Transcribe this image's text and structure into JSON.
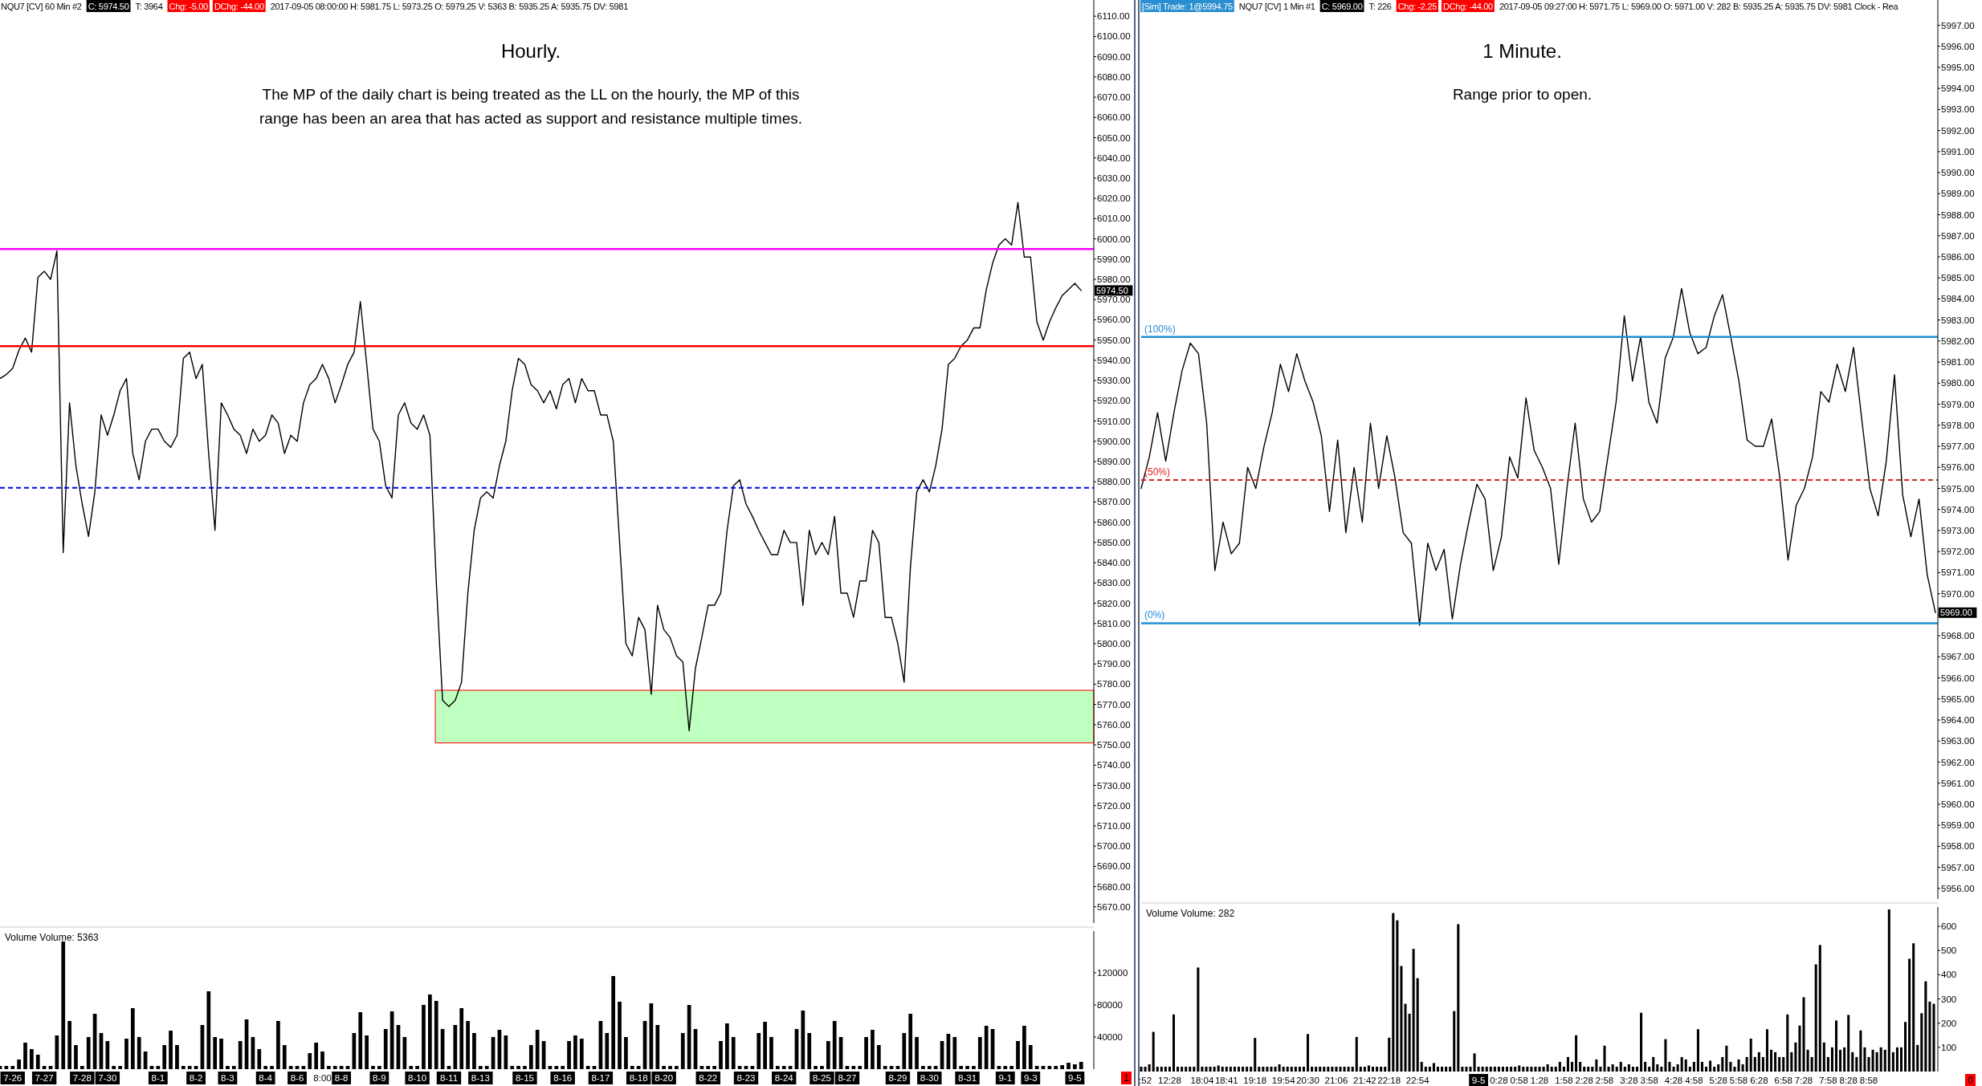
{
  "chart_data": [
    {
      "type": "line",
      "title": "Hourly.",
      "subtitle": "The MP of the daily chart is being treated as the LL on the hourly, the MP of this range has been an area that has acted as support and resistance multiple times.",
      "annotations": [
        "NQU7 [CV]  60 Min  #2",
        "C: 5974.50",
        "T: 3964",
        "Chg: -5.00",
        "DChg: -44.00",
        "2017-09-05 08:00:00 H: 5981.75 L: 5973.25 O: 5979.25 V: 5363 B: 5935.25 A: 5935.75 DV: 5981",
        "5974.50"
      ],
      "categories": [
        null,
        null,
        null,
        null,
        null,
        null,
        null,
        null,
        null,
        null,
        null,
        null,
        null,
        null,
        null,
        null,
        null,
        null,
        null,
        null,
        null,
        null,
        null,
        null,
        null,
        null,
        null,
        null,
        null,
        null,
        null,
        null,
        null,
        null,
        null,
        null,
        null,
        null,
        null,
        null,
        null,
        null,
        null,
        null,
        null,
        null,
        null,
        null,
        null,
        null,
        null,
        null,
        null,
        null,
        null,
        null,
        null,
        null,
        null,
        null,
        null,
        null,
        null,
        null,
        null,
        null,
        null,
        null,
        null,
        null,
        null,
        null,
        null,
        null,
        null,
        null,
        null,
        null,
        null,
        null,
        null,
        null,
        null,
        null,
        null,
        null,
        null,
        null,
        null,
        null,
        null,
        null,
        null,
        null,
        null,
        null,
        null,
        null,
        null,
        null,
        null,
        null,
        null,
        null,
        null,
        null,
        null,
        null,
        null,
        null,
        null,
        null,
        null,
        null,
        null,
        null,
        null,
        null,
        null,
        null,
        null,
        null,
        null,
        null,
        null,
        null,
        null,
        null,
        null,
        null,
        null,
        null,
        null,
        null,
        null,
        null,
        null,
        null,
        null,
        null,
        null,
        null,
        null,
        null,
        null,
        null,
        null,
        null,
        null,
        null,
        null,
        null,
        null,
        null,
        null,
        null,
        null,
        null,
        null,
        null,
        null,
        null,
        null,
        null,
        null,
        null,
        null,
        null,
        null,
        null,
        null,
        null,
        null,
        null
      ],
      "values": [
        5931,
        5933,
        5936,
        5945,
        5951,
        5944,
        5981,
        5984,
        5980,
        5994,
        5845,
        5919,
        5888,
        5869,
        5853,
        5875,
        5913,
        5903,
        5913,
        5925,
        5931,
        5894,
        5881,
        5900,
        5906,
        5906,
        5900,
        5897,
        5903,
        5941,
        5944,
        5931,
        5938,
        5894,
        5856,
        5919,
        5913,
        5906,
        5903,
        5894,
        5906,
        5900,
        5903,
        5913,
        5909,
        5894,
        5903,
        5900,
        5919,
        5928,
        5931,
        5938,
        5931,
        5919,
        5928,
        5938,
        5944,
        5969,
        5938,
        5906,
        5900,
        5878,
        5872,
        5913,
        5919,
        5909,
        5906,
        5913,
        5903,
        5831,
        5772,
        5769,
        5772,
        5781,
        5825,
        5856,
        5872,
        5875,
        5872,
        5888,
        5900,
        5925,
        5941,
        5938,
        5928,
        5925,
        5919,
        5925,
        5916,
        5928,
        5931,
        5919,
        5931,
        5925,
        5925,
        5913,
        5913,
        5900,
        5850,
        5800,
        5794,
        5813,
        5807,
        5775,
        5819,
        5807,
        5803,
        5794,
        5791,
        5757,
        5788,
        5803,
        5819,
        5819,
        5825,
        5856,
        5878,
        5881,
        5869,
        5863,
        5856,
        5850,
        5844,
        5844,
        5856,
        5850,
        5850,
        5819,
        5856,
        5844,
        5850,
        5844,
        5863,
        5825,
        5825,
        5813,
        5831,
        5831,
        5856,
        5850,
        5813,
        5813,
        5800,
        5781,
        5838,
        5875,
        5881,
        5875,
        5888,
        5906,
        5938,
        5941,
        5947,
        5950,
        5956,
        5956,
        5975,
        5988,
        5997,
        6000,
        5997,
        6018,
        5991,
        5991,
        5959,
        5950,
        5959,
        5966,
        5972,
        5975,
        5978,
        5974.5,
        null,
        null
      ],
      "color": "#000000",
      "ylim": [
        5662,
        6118
      ],
      "tick_labels": "y",
      "yticks": [
        {
          "value": 5670,
          "label": "5670.00"
        },
        {
          "value": 5680,
          "label": "5680.00"
        },
        {
          "value": 5690,
          "label": "5690.00"
        },
        {
          "value": 5700,
          "label": "5700.00"
        },
        {
          "value": 5710,
          "label": "5710.00"
        },
        {
          "value": 5720,
          "label": "5720.00"
        },
        {
          "value": 5730,
          "label": "5730.00"
        },
        {
          "value": 5740,
          "label": "5740.00"
        },
        {
          "value": 5750,
          "label": "5750.00"
        },
        {
          "value": 5760,
          "label": "5760.00"
        },
        {
          "value": 5770,
          "label": "5770.00"
        },
        {
          "value": 5780,
          "label": "5780.00"
        },
        {
          "value": 5790,
          "label": "5790.00"
        },
        {
          "value": 5800,
          "label": "5800.00"
        },
        {
          "value": 5810,
          "label": "5810.00"
        },
        {
          "value": 5820,
          "label": "5820.00"
        },
        {
          "value": 5830,
          "label": "5830.00"
        },
        {
          "value": 5840,
          "label": "5840.00"
        },
        {
          "value": 5850,
          "label": "5850.00"
        },
        {
          "value": 5860,
          "label": "5860.00"
        },
        {
          "value": 5870,
          "label": "5870.00"
        },
        {
          "value": 5880,
          "label": "5880.00"
        },
        {
          "value": 5890,
          "label": "5890.00"
        },
        {
          "value": 5900,
          "label": "5900.00"
        },
        {
          "value": 5910,
          "label": "5910.00"
        },
        {
          "value": 5920,
          "label": "5920.00"
        },
        {
          "value": 5930,
          "label": "5930.00"
        },
        {
          "value": 5940,
          "label": "5940.00"
        },
        {
          "value": 5950,
          "label": "5950.00"
        },
        {
          "value": 5960,
          "label": "5960.00"
        },
        {
          "value": 5970,
          "label": "5970.00"
        },
        {
          "value": 5980,
          "label": "5980.00"
        },
        {
          "value": 5990,
          "label": "5990.00"
        },
        {
          "value": 6000,
          "label": "6000.00"
        },
        {
          "value": 6010,
          "label": "6010.00"
        },
        {
          "value": 6020,
          "label": "6020.00"
        },
        {
          "value": 6030,
          "label": "6030.00"
        },
        {
          "value": 6040,
          "label": "6040.00"
        },
        {
          "value": 6050,
          "label": "6050.00"
        },
        {
          "value": 6060,
          "label": "6060.00"
        },
        {
          "value": 6070,
          "label": "6070.00"
        },
        {
          "value": 6080,
          "label": "6080.00"
        },
        {
          "value": 6090,
          "label": "6090.00"
        },
        {
          "value": 6100,
          "label": "6100.00"
        },
        {
          "value": 6110,
          "label": "6110.00"
        }
      ],
      "ref_lines": [
        {
          "axis": "y",
          "value": 5995,
          "color": "#ff00ff",
          "line_style": "solid"
        },
        {
          "axis": "y",
          "value": 5877,
          "color": "#0000ff",
          "line_style": "dashed"
        },
        {
          "axis": "y",
          "value": 5947,
          "color": "#ff0000",
          "line_style": "solid"
        }
      ],
      "bands": [
        {
          "axis": "y",
          "from": 5751,
          "to": 5777,
          "color": "#bfffbf"
        }
      ]
    },
    {
      "type": "bar",
      "title": "Volume  Volume: 5363",
      "annotations": [
        "1"
      ],
      "color": "#000000",
      "categories": [
        null,
        null,
        "7-26",
        null,
        null,
        null,
        null,
        "7-27",
        null,
        null,
        null,
        null,
        null,
        "7-28",
        null,
        null,
        null,
        "7-30",
        null,
        null,
        null,
        null,
        null,
        null,
        null,
        "8-1",
        null,
        null,
        null,
        null,
        null,
        "8-2",
        null,
        null,
        null,
        null,
        "8-3",
        null,
        null,
        null,
        null,
        null,
        "8-4",
        null,
        null,
        null,
        null,
        "8-6",
        null,
        null,
        null,
        "8:00",
        null,
        null,
        "8-8",
        null,
        null,
        null,
        null,
        null,
        "8-9",
        null,
        null,
        null,
        null,
        null,
        "8-10",
        null,
        null,
        null,
        null,
        "8-11",
        null,
        null,
        null,
        null,
        "8-13",
        null,
        null,
        null,
        null,
        null,
        null,
        "8-15",
        null,
        null,
        null,
        null,
        null,
        "8-16",
        null,
        null,
        null,
        null,
        null,
        "8-17",
        null,
        null,
        null,
        null,
        null,
        "8-18",
        null,
        null,
        null,
        "8-20",
        null,
        null,
        null,
        null,
        null,
        null,
        "8-22",
        null,
        null,
        null,
        null,
        null,
        "8-23",
        null,
        null,
        null,
        null,
        null,
        "8-24",
        null,
        null,
        null,
        null,
        null,
        "8-25",
        null,
        null,
        null,
        "8-27",
        null,
        null,
        null,
        null,
        null,
        null,
        null,
        "8-29",
        null,
        null,
        null,
        null,
        "8-30",
        null,
        null,
        null,
        null,
        null,
        "8-31",
        null,
        null,
        null,
        null,
        null,
        "9-1",
        null,
        null,
        null,
        "9-3",
        null,
        null,
        null,
        null,
        null,
        null,
        "9-5",
        null,
        null,
        null
      ],
      "values": [
        4000,
        4000,
        4000,
        12000,
        33000,
        25000,
        18000,
        4000,
        4000,
        42000,
        159000,
        60000,
        30000,
        4000,
        40000,
        69000,
        45000,
        35000,
        4000,
        4000,
        38000,
        76000,
        40000,
        22000,
        4000,
        4000,
        30000,
        48000,
        30000,
        4000,
        4000,
        4000,
        55000,
        97000,
        40000,
        38000,
        4000,
        4000,
        35000,
        62000,
        40000,
        25000,
        4000,
        4000,
        60000,
        30000,
        4000,
        4000,
        4000,
        20000,
        33000,
        22000,
        4000,
        4000,
        4000,
        4000,
        45000,
        71000,
        42000,
        4000,
        4000,
        50000,
        72000,
        55000,
        40000,
        4000,
        4000,
        80000,
        93000,
        85000,
        50000,
        4000,
        55000,
        76000,
        60000,
        45000,
        4000,
        4000,
        40000,
        49000,
        42000,
        4000,
        4000,
        4000,
        30000,
        49000,
        35000,
        4000,
        4000,
        4000,
        35000,
        42000,
        38000,
        4000,
        4000,
        60000,
        45000,
        116000,
        84000,
        40000,
        4000,
        4000,
        60000,
        82000,
        55000,
        4000,
        4000,
        4000,
        45000,
        80000,
        50000,
        4000,
        4000,
        4000,
        35000,
        57000,
        40000,
        4000,
        4000,
        4000,
        45000,
        59000,
        40000,
        4000,
        4000,
        4000,
        50000,
        73000,
        45000,
        4000,
        4000,
        35000,
        60000,
        40000,
        4000,
        4000,
        4000,
        40000,
        49000,
        30000,
        4000,
        4000,
        4000,
        45000,
        69000,
        40000,
        4000,
        4000,
        4000,
        35000,
        44000,
        40000,
        4000,
        4000,
        4000,
        40000,
        54000,
        50000,
        4000,
        4000,
        4000,
        35000,
        54000,
        30000,
        4000,
        4000,
        4000,
        4000,
        5000,
        8000,
        6000,
        9000,
        null,
        null
      ],
      "ylim": [
        0,
        172000
      ],
      "yticks": [
        40000,
        80000,
        120000
      ]
    },
    {
      "type": "line",
      "title": "1 Minute.",
      "subtitle": "Range prior to open.",
      "annotations": [
        "[Sim]  Trade: 1@5994.75",
        "NQU7 [CV]  1 Min  #1",
        "C: 5969.00",
        "T: 226",
        "Chg: -2.25",
        "DChg: -44.00",
        "2017-09-05 09:27:00 H: 5971.75 L: 5969.00 O: 5971.00 V: 282 B: 5935.25 A: 5935.75 DV: 5981 Clock - Rea",
        "5969.00",
        "(100%)",
        "(50%)",
        "(0%)"
      ],
      "categories": [
        null,
        null,
        null,
        null,
        null,
        null,
        null,
        null,
        null,
        null,
        null,
        null,
        null,
        null,
        null,
        null,
        null,
        null,
        null,
        null,
        null,
        null,
        null,
        null,
        null,
        null,
        null,
        null,
        null,
        null,
        null,
        null,
        null,
        null,
        null,
        null,
        null,
        null,
        null,
        null,
        null,
        null,
        null,
        null,
        null,
        null,
        null,
        null,
        null,
        null,
        null,
        null,
        null,
        null,
        null,
        null,
        null,
        null,
        null,
        null,
        null,
        null,
        null,
        null,
        null,
        null,
        null,
        null,
        null,
        null,
        null,
        null,
        null,
        null,
        null,
        null,
        null,
        null,
        null,
        null,
        null,
        null,
        null,
        null,
        null,
        null,
        null,
        null,
        null,
        null,
        null,
        null,
        null,
        null,
        null,
        null,
        null,
        null
      ],
      "values": [
        5975.0,
        5976.5,
        5978.6,
        5976.3,
        5978.6,
        5980.6,
        5981.9,
        5981.4,
        5978.1,
        5971.1,
        5973.4,
        5971.9,
        5972.4,
        5976.0,
        5975.0,
        5977.0,
        5978.6,
        5980.9,
        5979.6,
        5981.4,
        5980.1,
        5979.1,
        5977.5,
        5973.9,
        5977.3,
        5972.9,
        5976.0,
        5973.4,
        5978.1,
        5975.0,
        5977.5,
        5975.5,
        5972.9,
        5972.4,
        5968.5,
        5972.4,
        5971.1,
        5972.1,
        5968.8,
        5971.4,
        5973.4,
        5975.2,
        5974.5,
        5971.1,
        5972.7,
        5976.5,
        5975.5,
        5979.3,
        5976.8,
        5976.0,
        5975.0,
        5971.4,
        5975.0,
        5978.1,
        5974.5,
        5973.4,
        5973.9,
        5976.5,
        5979.1,
        5983.2,
        5980.1,
        5982.2,
        5979.1,
        5978.1,
        5981.2,
        5982.2,
        5984.5,
        5982.4,
        5981.4,
        5981.7,
        5983.2,
        5984.2,
        5982.2,
        5980.1,
        5977.3,
        5977.0,
        5977.0,
        5978.3,
        5975.5,
        5971.6,
        5974.2,
        5975.0,
        5976.5,
        5979.6,
        5979.1,
        5980.9,
        5979.6,
        5981.7,
        5978.3,
        5975.0,
        5973.7,
        5976.3,
        5980.4,
        5974.7,
        5972.7,
        5974.5,
        5970.9,
        5969.1
      ],
      "color": "#000000",
      "ylim": [
        5955.5,
        5998.2
      ],
      "tick_labels": "y",
      "yticks": [
        {
          "value": 5956,
          "label": "5956.00"
        },
        {
          "value": 5957,
          "label": "5957.00"
        },
        {
          "value": 5958,
          "label": "5958.00"
        },
        {
          "value": 5959,
          "label": "5959.00"
        },
        {
          "value": 5960,
          "label": "5960.00"
        },
        {
          "value": 5961,
          "label": "5961.00"
        },
        {
          "value": 5962,
          "label": "5962.00"
        },
        {
          "value": 5963,
          "label": "5963.00"
        },
        {
          "value": 5964,
          "label": "5964.00"
        },
        {
          "value": 5965,
          "label": "5965.00"
        },
        {
          "value": 5966,
          "label": "5966.00"
        },
        {
          "value": 5967,
          "label": "5967.00"
        },
        {
          "value": 5968,
          "label": "5968.00"
        },
        {
          "value": 5969,
          "label": null
        },
        {
          "value": 5970,
          "label": "5970.00"
        },
        {
          "value": 5971,
          "label": "5971.00"
        },
        {
          "value": 5972,
          "label": "5972.00"
        },
        {
          "value": 5973,
          "label": "5973.00"
        },
        {
          "value": 5974,
          "label": "5974.00"
        },
        {
          "value": 5975,
          "label": "5975.00"
        },
        {
          "value": 5976,
          "label": "5976.00"
        },
        {
          "value": 5977,
          "label": "5977.00"
        },
        {
          "value": 5978,
          "label": "5978.00"
        },
        {
          "value": 5979,
          "label": "5979.00"
        },
        {
          "value": 5980,
          "label": "5980.00"
        },
        {
          "value": 5981,
          "label": "5981.00"
        },
        {
          "value": 5982,
          "label": "5982.00"
        },
        {
          "value": 5983,
          "label": "5983.00"
        },
        {
          "value": 5984,
          "label": "5984.00"
        },
        {
          "value": 5985,
          "label": "5985.00"
        },
        {
          "value": 5986,
          "label": "5986.00"
        },
        {
          "value": 5987,
          "label": "5987.00"
        },
        {
          "value": 5988,
          "label": "5988.00"
        },
        {
          "value": 5989,
          "label": "5989.00"
        },
        {
          "value": 5990,
          "label": "5990.00"
        },
        {
          "value": 5991,
          "label": "5991.00"
        },
        {
          "value": 5992,
          "label": "5992.00"
        },
        {
          "value": 5993,
          "label": "5993.00"
        },
        {
          "value": 5994,
          "label": "5994.00"
        },
        {
          "value": 5995,
          "label": "5995.00"
        },
        {
          "value": 5996,
          "label": "5996.00"
        },
        {
          "value": 5997,
          "label": "5997.00"
        }
      ],
      "ref_lines": [
        {
          "axis": "y",
          "value": 5982.2,
          "color": "#1f8dd6",
          "line_style": "solid"
        },
        {
          "axis": "y",
          "value": 5975.4,
          "color": "#e02020",
          "line_style": "dashed"
        },
        {
          "axis": "y",
          "value": 5968.6,
          "color": "#1f8dd6",
          "line_style": "solid"
        }
      ]
    },
    {
      "type": "bar",
      "title": "Volume  Volume: 282",
      "annotations": [
        "0"
      ],
      "color": "#000000",
      "categories": [
        null,
        ":52",
        null,
        null,
        null,
        null,
        null,
        "12:28",
        null,
        null,
        null,
        null,
        null,
        null,
        null,
        "18:04",
        null,
        null,
        null,
        null,
        null,
        "18:41",
        null,
        null,
        null,
        null,
        null,
        null,
        "19:18",
        null,
        null,
        null,
        null,
        null,
        null,
        "19:54",
        null,
        null,
        null,
        null,
        null,
        "20:30",
        null,
        null,
        null,
        null,
        null,
        null,
        "21:06",
        null,
        null,
        null,
        null,
        null,
        null,
        "21:42",
        null,
        null,
        null,
        null,
        null,
        "22:18",
        null,
        null,
        null,
        null,
        null,
        null,
        "22:54",
        null,
        null,
        null,
        null,
        null,
        null,
        null,
        null,
        null,
        null,
        null,
        null,
        null,
        null,
        "9-5",
        null,
        null,
        null,
        null,
        "0:28",
        null,
        null,
        null,
        null,
        "0:58",
        null,
        null,
        null,
        null,
        "1:28",
        null,
        null,
        null,
        null,
        null,
        "1:58",
        null,
        null,
        null,
        null,
        "2:28",
        null,
        null,
        null,
        null,
        "2:58",
        null,
        null,
        null,
        null,
        null,
        "3:28",
        null,
        null,
        null,
        null,
        "3:58",
        null,
        null,
        null,
        null,
        null,
        "4:28",
        null,
        null,
        null,
        null,
        "4:58",
        null,
        null,
        null,
        null,
        null,
        "5:28",
        null,
        null,
        null,
        null,
        "5:58",
        null,
        null,
        null,
        null,
        "6:28",
        null,
        null,
        null,
        null,
        null,
        "6:58",
        null,
        null,
        null,
        null,
        "7:28",
        null,
        null,
        null,
        null,
        null,
        "7:58",
        null,
        null,
        null,
        null,
        "8:28",
        null,
        null,
        null,
        null,
        "8:58",
        null,
        null,
        null,
        null,
        null,
        null,
        null,
        null,
        null,
        null,
        null,
        null,
        null,
        null,
        null,
        null
      ],
      "values": [
        20,
        20,
        30,
        164,
        20,
        20,
        20,
        20,
        236,
        20,
        20,
        20,
        20,
        20,
        430,
        20,
        20,
        20,
        20,
        25,
        20,
        20,
        20,
        20,
        20,
        20,
        20,
        20,
        139,
        20,
        20,
        20,
        20,
        20,
        30,
        20,
        20,
        20,
        20,
        20,
        20,
        155,
        20,
        20,
        20,
        20,
        20,
        20,
        20,
        20,
        20,
        20,
        20,
        143,
        20,
        20,
        25,
        20,
        20,
        20,
        20,
        140,
        655,
        625,
        436,
        280,
        239,
        507,
        386,
        40,
        20,
        20,
        35,
        20,
        20,
        20,
        20,
        250,
        609,
        20,
        20,
        20,
        75,
        20,
        20,
        20,
        20,
        20,
        20,
        20,
        20,
        20,
        20,
        25,
        20,
        20,
        20,
        20,
        20,
        20,
        30,
        20,
        20,
        40,
        20,
        60,
        40,
        150,
        40,
        20,
        20,
        20,
        50,
        20,
        107,
        20,
        30,
        20,
        40,
        20,
        30,
        20,
        20,
        243,
        40,
        20,
        60,
        30,
        20,
        134,
        40,
        20,
        30,
        60,
        50,
        20,
        40,
        175,
        40,
        20,
        45,
        20,
        30,
        60,
        107,
        40,
        20,
        50,
        30,
        60,
        136,
        60,
        80,
        60,
        175,
        90,
        80,
        60,
        60,
        236,
        80,
        120,
        190,
        307,
        90,
        60,
        443,
        523,
        120,
        60,
        100,
        211,
        90,
        100,
        234,
        80,
        60,
        170,
        100,
        60,
        90,
        80,
        100,
        90,
        670,
        80,
        100,
        100,
        205,
        466,
        530,
        110,
        241,
        373,
        289,
        280
      ],
      "ylim": [
        0,
        680
      ],
      "yticks": [
        100,
        200,
        300,
        400,
        500,
        600
      ]
    }
  ]
}
